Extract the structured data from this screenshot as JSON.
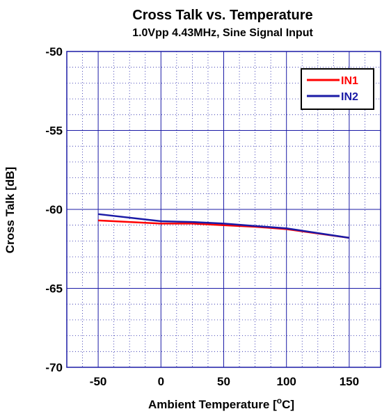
{
  "chart_data": {
    "type": "line",
    "title": "Cross Talk vs. Temperature",
    "subtitle": "1.0Vpp 4.43MHz, Sine Signal Input",
    "xlabel_main": "Ambient Temperature [",
    "xlabel_sup": "o",
    "xlabel_end": "C]",
    "ylabel": "Cross Talk [dB]",
    "xlim": [
      -75,
      175
    ],
    "ylim": [
      -70,
      -50
    ],
    "x_ticks": [
      -50,
      0,
      50,
      100,
      150
    ],
    "y_ticks": [
      -50,
      -55,
      -60,
      -65,
      -70
    ],
    "x_tick_labels": [
      "-50",
      "0",
      "50",
      "100",
      "150"
    ],
    "y_tick_labels": [
      "-50",
      "-55",
      "-60",
      "-65",
      "-70"
    ],
    "grid": true,
    "legend_position": "top-right",
    "series": [
      {
        "name": "IN1",
        "color": "#ff0000",
        "x": [
          -50,
          0,
          25,
          50,
          75,
          100,
          150
        ],
        "y": [
          -60.7,
          -60.9,
          -60.9,
          -61.0,
          -61.1,
          -61.25,
          -61.8
        ]
      },
      {
        "name": "IN2",
        "color": "#1a1aa6",
        "x": [
          -50,
          0,
          25,
          50,
          75,
          100,
          150
        ],
        "y": [
          -60.3,
          -60.75,
          -60.8,
          -60.9,
          -61.05,
          -61.2,
          -61.8
        ]
      }
    ]
  }
}
